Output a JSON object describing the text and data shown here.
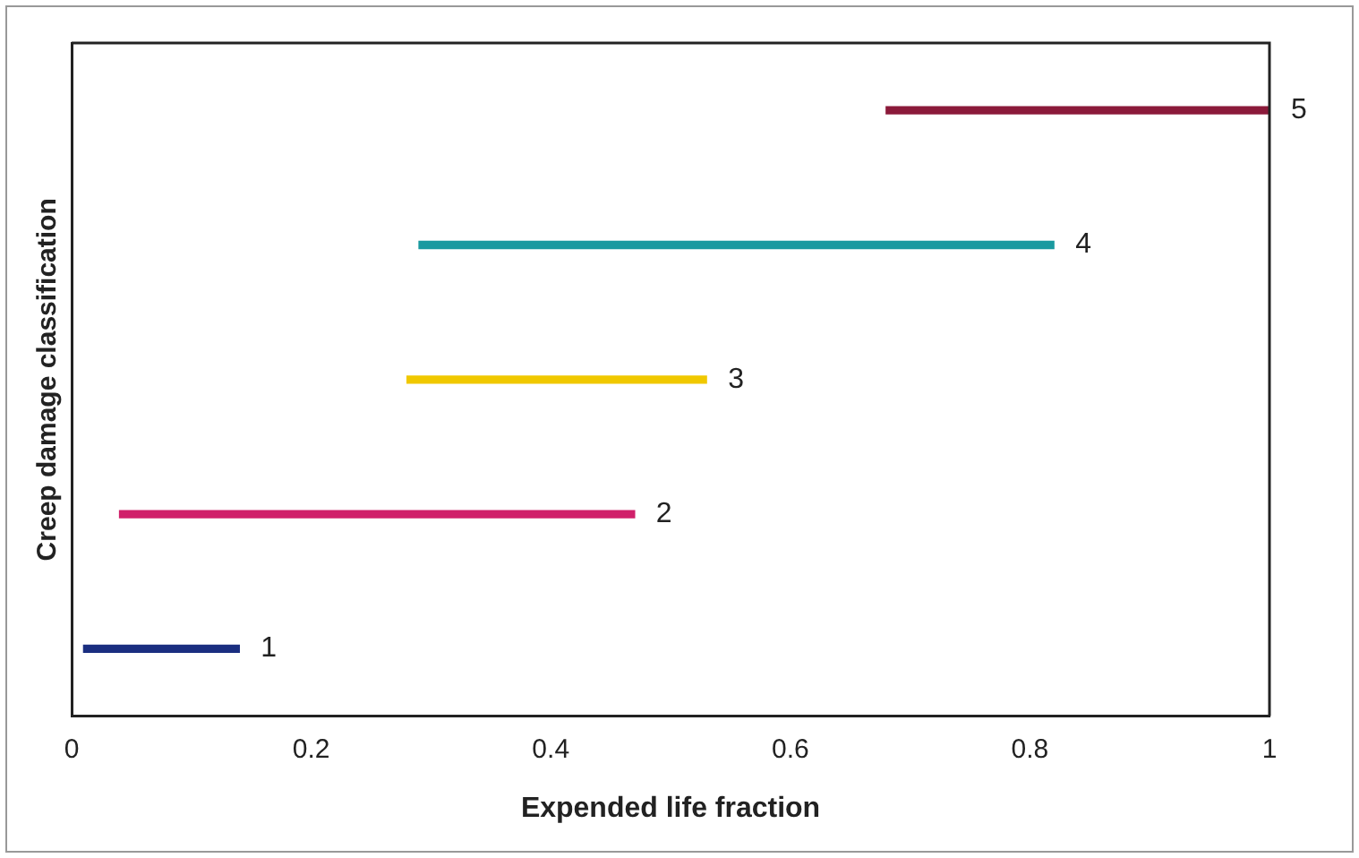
{
  "chart_data": {
    "type": "bar",
    "orientation": "horizontal",
    "xlabel": "Expended life fraction",
    "ylabel": "Creep damage classification",
    "categories": [
      "5",
      "4",
      "3",
      "2",
      "1"
    ],
    "base": [
      0.68,
      0.29,
      0.28,
      0.04,
      0.01
    ],
    "values": [
      0.32,
      0.53,
      0.25,
      0.43,
      0.13
    ],
    "colors": [
      "#8b1a3a",
      "#1a9aa0",
      "#f0c800",
      "#d0206a",
      "#1a2e80"
    ],
    "xlim": [
      0,
      1
    ],
    "xticks": [
      0,
      0.2,
      0.4,
      0.6,
      0.8,
      1
    ],
    "grid": false,
    "legend": false,
    "tick_labels": "x"
  }
}
